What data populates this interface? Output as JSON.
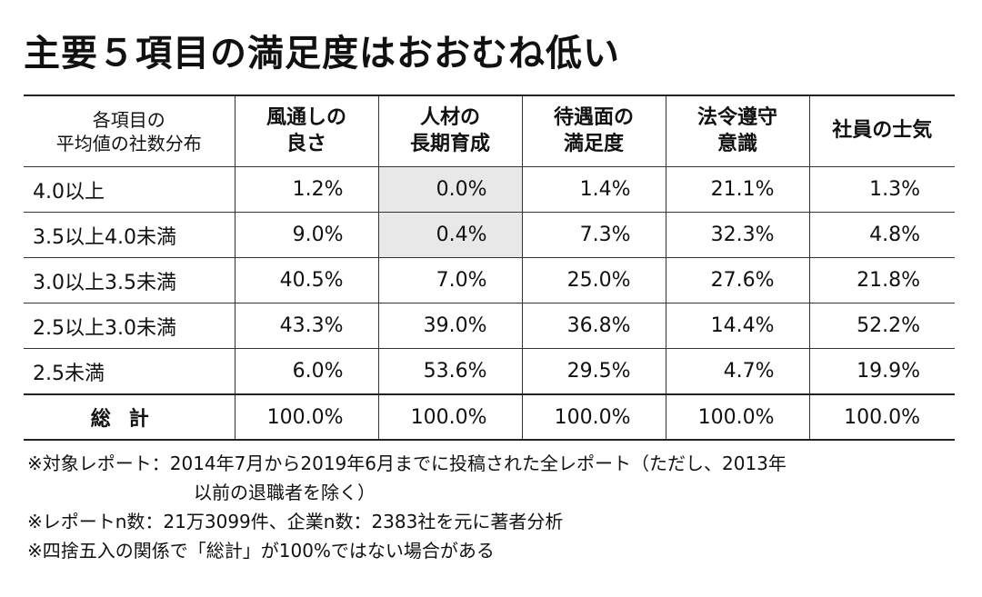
{
  "title": "主要５項目の満足度はおおむね低い",
  "table": {
    "corner_header": [
      "各項目の",
      "平均値の社数分布"
    ],
    "columns": [
      [
        "風通しの",
        "良さ"
      ],
      [
        "人材の",
        "長期育成"
      ],
      [
        "待遇面の",
        "満足度"
      ],
      [
        "法令遵守",
        "意識"
      ],
      [
        "社員の士気"
      ]
    ],
    "rows": [
      {
        "label": "4.0以上",
        "values": [
          "1.2%",
          "0.0%",
          "1.4%",
          "21.1%",
          "1.3%"
        ]
      },
      {
        "label": "3.5以上4.0未満",
        "values": [
          "9.0%",
          "0.4%",
          "7.3%",
          "32.3%",
          "4.8%"
        ]
      },
      {
        "label": "3.0以上3.5未満",
        "values": [
          "40.5%",
          "7.0%",
          "25.0%",
          "27.6%",
          "21.8%"
        ]
      },
      {
        "label": "2.5以上3.0未満",
        "values": [
          "43.3%",
          "39.0%",
          "36.8%",
          "14.4%",
          "52.2%"
        ]
      },
      {
        "label": "2.5未満",
        "values": [
          "6.0%",
          "53.6%",
          "29.5%",
          "4.7%",
          "19.9%"
        ]
      }
    ],
    "total": {
      "label": "総計",
      "values": [
        "100.0%",
        "100.0%",
        "100.0%",
        "100.0%",
        "100.0%"
      ]
    },
    "shade_color": "#e8e8e8"
  },
  "notes": [
    "※対象レポート：2014年7月から2019年6月までに投稿された全レポート（ただし、2013年",
    "以前の退職者を除く）",
    "※レポートn数：21万3099件、企業n数：2383社を元に著者分析",
    "※四捨五入の関係で「総計」が100%ではない場合がある"
  ]
}
